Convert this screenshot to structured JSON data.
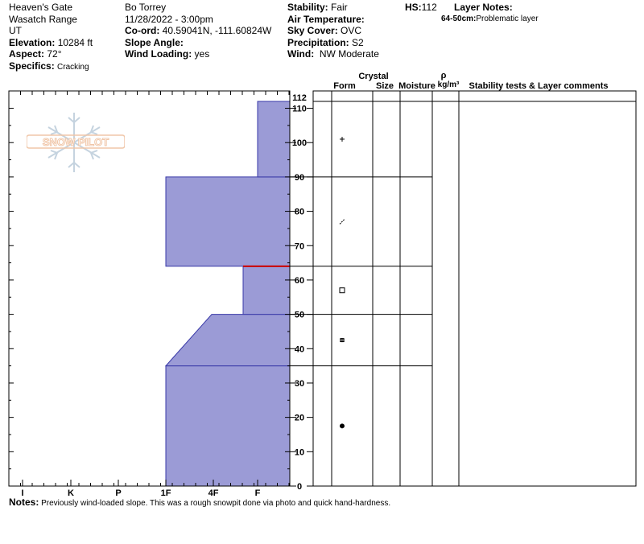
{
  "header": {
    "location": "Heaven's Gate",
    "range": "Wasatch Range",
    "state": "UT",
    "elevation_label": "Elevation:",
    "elevation": "10284 ft",
    "aspect_label": "Aspect:",
    "aspect": "72°",
    "specifics_label": "Specifics:",
    "specifics": "Cracking",
    "observer": "Bo Torrey",
    "datetime": "11/28/2022 - 3:00pm",
    "coord_label": "Co-ord:",
    "coord": "40.59041N, -111.60824W",
    "slope_label": "Slope Angle:",
    "slope": "",
    "wind_loading_label": "Wind Loading:",
    "wind_loading": "yes",
    "stability_label": "Stability:",
    "stability": "Fair",
    "air_temp_label": "Air Temperature:",
    "air_temp": "",
    "sky_label": "Sky Cover:",
    "sky": "OVC",
    "precip_label": "Precipitation:",
    "precip": "S2",
    "wind_label": "Wind:",
    "wind": "NW Moderate",
    "hs_label": "HS:",
    "hs": "112",
    "layer_notes_label": "Layer Notes:",
    "layer_note_range": "64-50cm:",
    "layer_note_text": "Problematic layer"
  },
  "logo": {
    "text": "SNOW PILOT",
    "color": "#f0c6a8"
  },
  "table_headers": {
    "crystal": "Crystal",
    "form": "Form",
    "size": "Size",
    "moisture": "Moisture",
    "rho": "ρ",
    "density_unit": "kg/m³",
    "comments": "Stability tests & Layer comments"
  },
  "notes": {
    "label": "Notes:",
    "text": "Previously wind-loaded slope. This was a rough snowpit done via photo and quick hand-hardness."
  },
  "chart_data": {
    "type": "area",
    "description_units": "height in cm vs hand hardness",
    "y_ticks": [
      0,
      10,
      20,
      30,
      40,
      50,
      60,
      70,
      80,
      90,
      100,
      110,
      112
    ],
    "ylim": [
      0,
      112
    ],
    "x_ticks": [
      "I",
      "K",
      "P",
      "1F",
      "4F",
      "F"
    ],
    "fill_color": "#9b9bd6",
    "edge_color": "#3a3aa8",
    "problem_color": "#cc0000",
    "layers": [
      {
        "top": 35,
        "bottom": 0,
        "hardness_top": "1F",
        "hardness_bottom": "1F",
        "grain": "round"
      },
      {
        "top": 50,
        "bottom": 35,
        "hardness_top": "4F+",
        "hardness_bottom": "1F",
        "grain": "faceted-rounded"
      },
      {
        "top": 64,
        "bottom": 50,
        "hardness_top": "F-",
        "hardness_bottom": "F-",
        "grain": "faceted"
      },
      {
        "top": 90,
        "bottom": 64,
        "hardness_top": "1F",
        "hardness_bottom": "1F",
        "grain": "decomposing"
      },
      {
        "top": 112,
        "bottom": 90,
        "hardness_top": "F",
        "hardness_bottom": "F",
        "grain": "new-snow"
      }
    ],
    "problem_layer": 64
  }
}
